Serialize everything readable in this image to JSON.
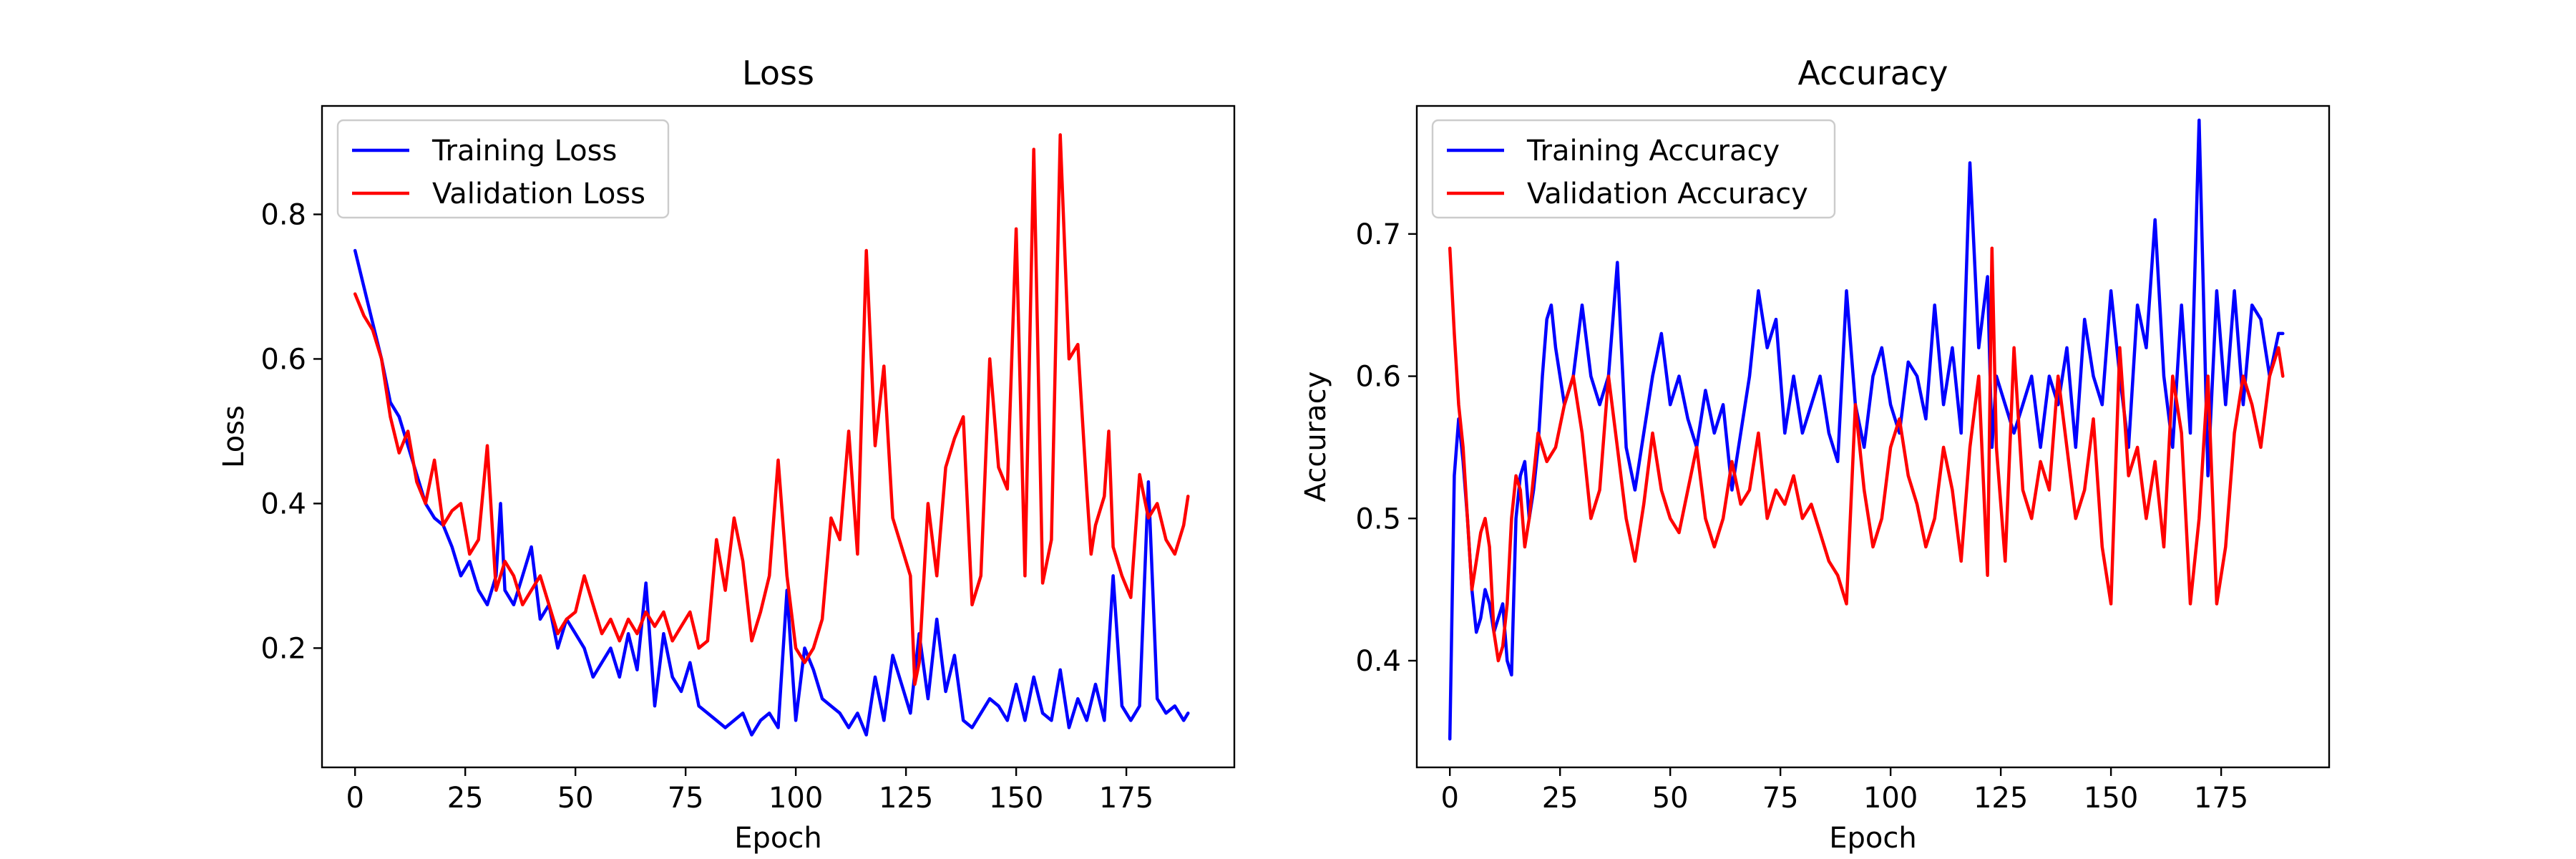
{
  "chart_data": [
    {
      "type": "line",
      "title": "Loss",
      "xlabel": "Epoch",
      "ylabel": "Loss",
      "xlim": [
        -7.5,
        199.5
      ],
      "ylim": [
        0.035,
        0.95
      ],
      "xticks": [
        0,
        25,
        50,
        75,
        100,
        125,
        150,
        175
      ],
      "yticks": [
        0.2,
        0.4,
        0.6,
        0.8
      ],
      "ytick_labels": [
        "0.2",
        "0.4",
        "0.6",
        "0.8"
      ],
      "grid": false,
      "legend": "top-left",
      "series": [
        {
          "name": "Training Loss",
          "color": "#0000ff",
          "x": [
            0,
            2,
            4,
            6,
            8,
            10,
            12,
            14,
            16,
            18,
            20,
            22,
            24,
            26,
            28,
            30,
            32,
            33,
            34,
            36,
            38,
            40,
            42,
            44,
            46,
            48,
            50,
            52,
            54,
            56,
            58,
            60,
            62,
            64,
            66,
            68,
            70,
            72,
            74,
            76,
            78,
            80,
            82,
            84,
            86,
            88,
            90,
            92,
            94,
            96,
            98,
            100,
            102,
            104,
            106,
            108,
            110,
            112,
            114,
            116,
            118,
            120,
            122,
            124,
            126,
            128,
            130,
            132,
            134,
            136,
            138,
            140,
            142,
            144,
            146,
            148,
            150,
            152,
            154,
            156,
            158,
            160,
            162,
            164,
            166,
            168,
            170,
            172,
            174,
            176,
            178,
            180,
            182,
            184,
            186,
            188,
            189
          ],
          "y": [
            0.75,
            0.7,
            0.65,
            0.6,
            0.54,
            0.52,
            0.48,
            0.44,
            0.4,
            0.38,
            0.37,
            0.34,
            0.3,
            0.32,
            0.28,
            0.26,
            0.3,
            0.4,
            0.28,
            0.26,
            0.3,
            0.34,
            0.24,
            0.26,
            0.2,
            0.24,
            0.22,
            0.2,
            0.16,
            0.18,
            0.2,
            0.16,
            0.22,
            0.17,
            0.29,
            0.12,
            0.22,
            0.16,
            0.14,
            0.18,
            0.12,
            0.11,
            0.1,
            0.09,
            0.1,
            0.11,
            0.08,
            0.1,
            0.11,
            0.09,
            0.28,
            0.1,
            0.2,
            0.17,
            0.13,
            0.12,
            0.11,
            0.09,
            0.11,
            0.08,
            0.16,
            0.1,
            0.19,
            0.15,
            0.11,
            0.22,
            0.13,
            0.24,
            0.14,
            0.19,
            0.1,
            0.09,
            0.11,
            0.13,
            0.12,
            0.1,
            0.15,
            0.1,
            0.16,
            0.11,
            0.1,
            0.17,
            0.09,
            0.13,
            0.1,
            0.15,
            0.1,
            0.3,
            0.12,
            0.1,
            0.12,
            0.43,
            0.13,
            0.11,
            0.12,
            0.1,
            0.11
          ]
        },
        {
          "name": "Validation Loss",
          "color": "#ff0000",
          "x": [
            0,
            2,
            4,
            6,
            8,
            10,
            12,
            14,
            16,
            18,
            20,
            22,
            24,
            26,
            28,
            30,
            32,
            34,
            36,
            38,
            40,
            42,
            44,
            46,
            48,
            50,
            52,
            54,
            56,
            58,
            60,
            62,
            64,
            66,
            68,
            70,
            72,
            74,
            76,
            78,
            80,
            82,
            84,
            86,
            88,
            90,
            92,
            94,
            96,
            98,
            100,
            102,
            104,
            106,
            108,
            110,
            112,
            114,
            116,
            118,
            120,
            122,
            124,
            126,
            127,
            128,
            130,
            132,
            134,
            136,
            138,
            140,
            142,
            144,
            146,
            148,
            150,
            152,
            154,
            156,
            158,
            160,
            162,
            164,
            166,
            167,
            168,
            170,
            171,
            172,
            174,
            176,
            178,
            180,
            182,
            184,
            186,
            188,
            189
          ],
          "y": [
            0.69,
            0.66,
            0.64,
            0.6,
            0.52,
            0.47,
            0.5,
            0.43,
            0.4,
            0.46,
            0.37,
            0.39,
            0.4,
            0.33,
            0.35,
            0.48,
            0.28,
            0.32,
            0.3,
            0.26,
            0.28,
            0.3,
            0.26,
            0.22,
            0.24,
            0.25,
            0.3,
            0.26,
            0.22,
            0.24,
            0.21,
            0.24,
            0.22,
            0.25,
            0.23,
            0.25,
            0.21,
            0.23,
            0.25,
            0.2,
            0.21,
            0.35,
            0.28,
            0.38,
            0.32,
            0.21,
            0.25,
            0.3,
            0.46,
            0.3,
            0.2,
            0.18,
            0.2,
            0.24,
            0.38,
            0.35,
            0.5,
            0.33,
            0.75,
            0.48,
            0.59,
            0.38,
            0.34,
            0.3,
            0.15,
            0.18,
            0.4,
            0.3,
            0.45,
            0.49,
            0.52,
            0.26,
            0.3,
            0.6,
            0.45,
            0.42,
            0.78,
            0.3,
            0.89,
            0.29,
            0.35,
            0.91,
            0.6,
            0.62,
            0.42,
            0.33,
            0.37,
            0.41,
            0.5,
            0.34,
            0.3,
            0.27,
            0.44,
            0.38,
            0.4,
            0.35,
            0.33,
            0.37,
            0.41
          ]
        }
      ]
    },
    {
      "type": "line",
      "title": "Accuracy",
      "xlabel": "Epoch",
      "ylabel": "Accuracy",
      "xlim": [
        -7.5,
        199.5
      ],
      "ylim": [
        0.325,
        0.79
      ],
      "xticks": [
        0,
        25,
        50,
        75,
        100,
        125,
        150,
        175
      ],
      "yticks": [
        0.4,
        0.5,
        0.6,
        0.7
      ],
      "ytick_labels": [
        "0.4",
        "0.5",
        "0.6",
        "0.7"
      ],
      "grid": false,
      "legend": "top-left",
      "series": [
        {
          "name": "Training Accuracy",
          "color": "#0000ff",
          "x": [
            0,
            1,
            2,
            3,
            4,
            5,
            6,
            7,
            8,
            9,
            10,
            11,
            12,
            13,
            14,
            15,
            16,
            17,
            18,
            19,
            20,
            21,
            22,
            23,
            24,
            26,
            28,
            30,
            32,
            34,
            36,
            38,
            40,
            42,
            44,
            46,
            48,
            50,
            52,
            54,
            56,
            58,
            60,
            62,
            64,
            66,
            68,
            70,
            72,
            74,
            76,
            78,
            80,
            82,
            84,
            86,
            88,
            90,
            92,
            94,
            96,
            98,
            100,
            102,
            104,
            106,
            108,
            110,
            112,
            114,
            116,
            118,
            120,
            122,
            123,
            124,
            126,
            128,
            130,
            132,
            134,
            136,
            138,
            140,
            142,
            144,
            146,
            148,
            150,
            152,
            154,
            156,
            158,
            160,
            162,
            164,
            166,
            168,
            170,
            172,
            174,
            176,
            178,
            180,
            182,
            184,
            186,
            188,
            189
          ],
          "y": [
            0.345,
            0.53,
            0.57,
            0.54,
            0.5,
            0.45,
            0.42,
            0.43,
            0.45,
            0.44,
            0.42,
            0.43,
            0.44,
            0.4,
            0.39,
            0.5,
            0.53,
            0.54,
            0.5,
            0.52,
            0.55,
            0.6,
            0.64,
            0.65,
            0.62,
            0.58,
            0.6,
            0.65,
            0.6,
            0.58,
            0.6,
            0.68,
            0.55,
            0.52,
            0.56,
            0.6,
            0.63,
            0.58,
            0.6,
            0.57,
            0.55,
            0.59,
            0.56,
            0.58,
            0.52,
            0.56,
            0.6,
            0.66,
            0.62,
            0.64,
            0.56,
            0.6,
            0.56,
            0.58,
            0.6,
            0.56,
            0.54,
            0.66,
            0.58,
            0.55,
            0.6,
            0.62,
            0.58,
            0.56,
            0.61,
            0.6,
            0.57,
            0.65,
            0.58,
            0.62,
            0.56,
            0.75,
            0.62,
            0.67,
            0.55,
            0.6,
            0.58,
            0.56,
            0.58,
            0.6,
            0.55,
            0.6,
            0.58,
            0.62,
            0.55,
            0.64,
            0.6,
            0.58,
            0.66,
            0.6,
            0.55,
            0.65,
            0.62,
            0.71,
            0.6,
            0.55,
            0.65,
            0.56,
            0.78,
            0.53,
            0.66,
            0.58,
            0.66,
            0.58,
            0.65,
            0.64,
            0.6,
            0.63,
            0.63
          ]
        },
        {
          "name": "Validation Accuracy",
          "color": "#ff0000",
          "x": [
            0,
            1,
            2,
            3,
            4,
            5,
            6,
            7,
            8,
            9,
            10,
            11,
            12,
            13,
            14,
            15,
            16,
            17,
            18,
            20,
            22,
            24,
            26,
            28,
            30,
            32,
            34,
            36,
            38,
            40,
            42,
            44,
            46,
            48,
            50,
            52,
            54,
            56,
            58,
            60,
            62,
            64,
            66,
            68,
            70,
            72,
            74,
            76,
            78,
            80,
            82,
            84,
            86,
            88,
            90,
            92,
            94,
            96,
            98,
            100,
            102,
            104,
            106,
            108,
            110,
            112,
            114,
            116,
            118,
            120,
            122,
            123,
            124,
            126,
            128,
            130,
            132,
            134,
            136,
            138,
            140,
            142,
            144,
            146,
            148,
            150,
            152,
            154,
            156,
            158,
            160,
            162,
            164,
            166,
            168,
            170,
            172,
            174,
            176,
            178,
            180,
            182,
            184,
            186,
            188,
            189
          ],
          "y": [
            0.69,
            0.63,
            0.58,
            0.55,
            0.5,
            0.45,
            0.47,
            0.49,
            0.5,
            0.48,
            0.42,
            0.4,
            0.41,
            0.44,
            0.5,
            0.53,
            0.52,
            0.48,
            0.5,
            0.56,
            0.54,
            0.55,
            0.58,
            0.6,
            0.56,
            0.5,
            0.52,
            0.6,
            0.55,
            0.5,
            0.47,
            0.51,
            0.56,
            0.52,
            0.5,
            0.49,
            0.52,
            0.55,
            0.5,
            0.48,
            0.5,
            0.54,
            0.51,
            0.52,
            0.56,
            0.5,
            0.52,
            0.51,
            0.53,
            0.5,
            0.51,
            0.49,
            0.47,
            0.46,
            0.44,
            0.58,
            0.52,
            0.48,
            0.5,
            0.55,
            0.57,
            0.53,
            0.51,
            0.48,
            0.5,
            0.55,
            0.52,
            0.47,
            0.55,
            0.6,
            0.46,
            0.69,
            0.55,
            0.47,
            0.62,
            0.52,
            0.5,
            0.54,
            0.52,
            0.6,
            0.55,
            0.5,
            0.52,
            0.57,
            0.48,
            0.44,
            0.62,
            0.53,
            0.55,
            0.5,
            0.54,
            0.48,
            0.6,
            0.56,
            0.44,
            0.5,
            0.6,
            0.44,
            0.48,
            0.56,
            0.6,
            0.58,
            0.55,
            0.6,
            0.62,
            0.6
          ]
        }
      ]
    }
  ]
}
